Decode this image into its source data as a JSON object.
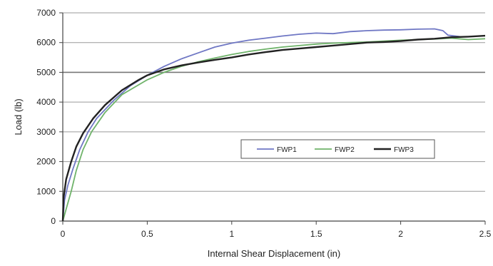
{
  "chart_data": {
    "type": "line",
    "title": "",
    "xlabel": "Internal Shear Displacement (in)",
    "ylabel": "Load (lb)",
    "xlim": [
      0,
      2.5
    ],
    "ylim": [
      0,
      7000
    ],
    "x_ticks": [
      "0",
      "0.5",
      "1",
      "1.5",
      "2",
      "2.5"
    ],
    "y_ticks": [
      "0",
      "1000",
      "2000",
      "3000",
      "4000",
      "5000",
      "6000",
      "7000"
    ],
    "grid": "horizontal",
    "legend_position": "right",
    "series": [
      {
        "name": "FWP1",
        "color": "#6f77c4",
        "points": [
          [
            0,
            0
          ],
          [
            0.01,
            700
          ],
          [
            0.03,
            1200
          ],
          [
            0.06,
            1750
          ],
          [
            0.1,
            2400
          ],
          [
            0.15,
            3000
          ],
          [
            0.2,
            3450
          ],
          [
            0.3,
            4050
          ],
          [
            0.4,
            4550
          ],
          [
            0.5,
            4900
          ],
          [
            0.6,
            5200
          ],
          [
            0.7,
            5450
          ],
          [
            0.8,
            5650
          ],
          [
            0.9,
            5850
          ],
          [
            1.0,
            5980
          ],
          [
            1.1,
            6080
          ],
          [
            1.2,
            6150
          ],
          [
            1.3,
            6220
          ],
          [
            1.4,
            6280
          ],
          [
            1.5,
            6320
          ],
          [
            1.6,
            6300
          ],
          [
            1.7,
            6370
          ],
          [
            1.8,
            6400
          ],
          [
            1.9,
            6420
          ],
          [
            2.0,
            6430
          ],
          [
            2.1,
            6450
          ],
          [
            2.2,
            6460
          ],
          [
            2.25,
            6400
          ],
          [
            2.28,
            6250
          ],
          [
            2.35,
            6200
          ]
        ]
      },
      {
        "name": "FWP2",
        "color": "#6fb36a",
        "points": [
          [
            0,
            0
          ],
          [
            0.02,
            400
          ],
          [
            0.05,
            1000
          ],
          [
            0.08,
            1700
          ],
          [
            0.12,
            2400
          ],
          [
            0.17,
            3000
          ],
          [
            0.25,
            3650
          ],
          [
            0.35,
            4250
          ],
          [
            0.5,
            4750
          ],
          [
            0.6,
            5000
          ],
          [
            0.7,
            5200
          ],
          [
            0.8,
            5350
          ],
          [
            0.9,
            5480
          ],
          [
            1.0,
            5600
          ],
          [
            1.1,
            5700
          ],
          [
            1.2,
            5780
          ],
          [
            1.3,
            5850
          ],
          [
            1.4,
            5900
          ],
          [
            1.5,
            5950
          ],
          [
            1.6,
            5980
          ],
          [
            1.7,
            6000
          ],
          [
            1.8,
            6020
          ],
          [
            1.9,
            6050
          ],
          [
            2.0,
            6080
          ],
          [
            2.1,
            6100
          ],
          [
            2.2,
            6120
          ],
          [
            2.3,
            6150
          ],
          [
            2.4,
            6100
          ],
          [
            2.5,
            6130
          ]
        ]
      },
      {
        "name": "FWP3",
        "color": "#222222",
        "points": [
          [
            0,
            0
          ],
          [
            0.005,
            800
          ],
          [
            0.02,
            1400
          ],
          [
            0.05,
            2000
          ],
          [
            0.08,
            2500
          ],
          [
            0.12,
            2950
          ],
          [
            0.18,
            3450
          ],
          [
            0.25,
            3900
          ],
          [
            0.35,
            4400
          ],
          [
            0.45,
            4750
          ],
          [
            0.5,
            4900
          ],
          [
            0.6,
            5100
          ],
          [
            0.7,
            5230
          ],
          [
            0.8,
            5330
          ],
          [
            0.9,
            5420
          ],
          [
            1.0,
            5500
          ],
          [
            1.1,
            5600
          ],
          [
            1.2,
            5680
          ],
          [
            1.3,
            5750
          ],
          [
            1.4,
            5800
          ],
          [
            1.5,
            5850
          ],
          [
            1.6,
            5900
          ],
          [
            1.7,
            5950
          ],
          [
            1.8,
            6000
          ],
          [
            1.9,
            6020
          ],
          [
            2.0,
            6050
          ],
          [
            2.1,
            6100
          ],
          [
            2.2,
            6130
          ],
          [
            2.3,
            6180
          ],
          [
            2.4,
            6200
          ],
          [
            2.5,
            6230
          ]
        ]
      }
    ]
  }
}
